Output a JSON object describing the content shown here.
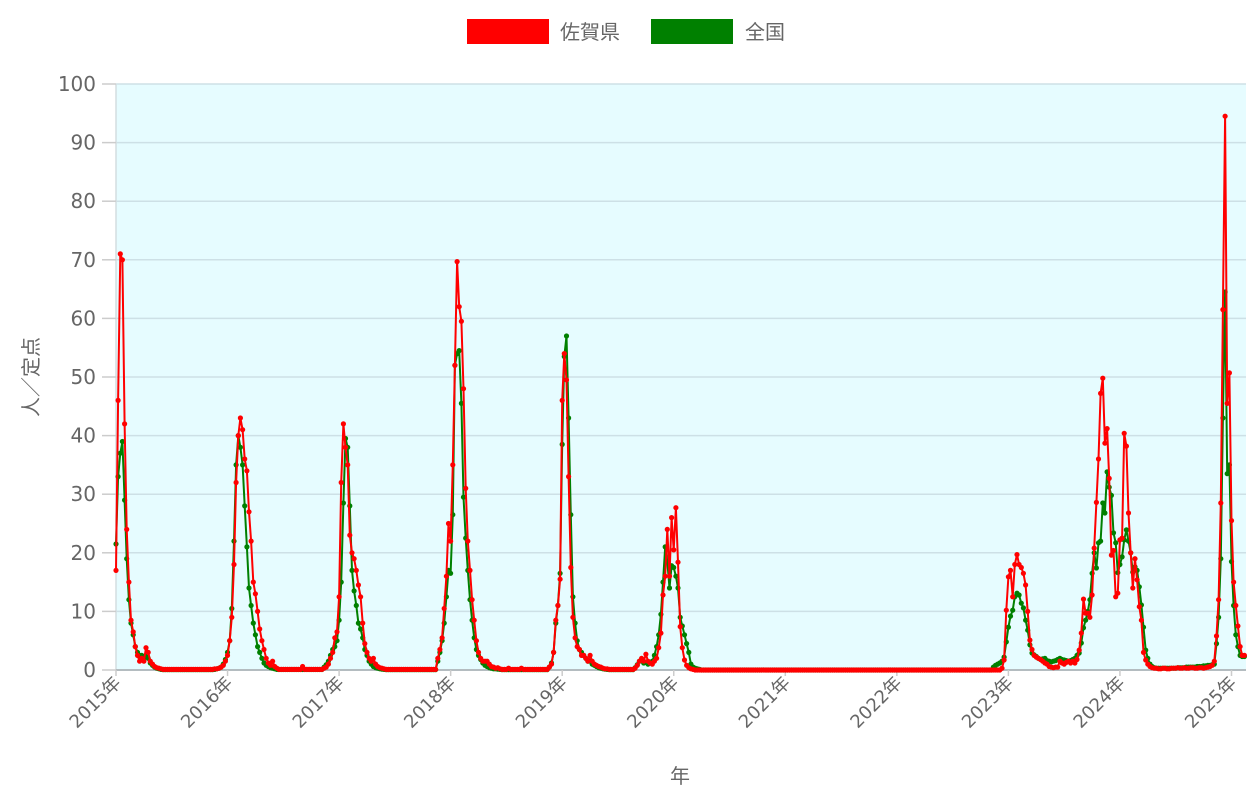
{
  "chart_data": {
    "type": "line",
    "title": "",
    "xlabel": "年",
    "ylabel": "人／定点",
    "xlim": [
      2015,
      2025.13
    ],
    "ylim": [
      0,
      100
    ],
    "y_ticks": [
      0,
      10,
      20,
      30,
      40,
      50,
      60,
      70,
      80,
      90,
      100
    ],
    "x_ticks": [
      2015,
      2016,
      2017,
      2018,
      2019,
      2020,
      2021,
      2022,
      2023,
      2024,
      2025
    ],
    "x_tick_labels": [
      "2015年",
      "2016年",
      "2017年",
      "2018年",
      "2019年",
      "2020年",
      "2021年",
      "2022年",
      "2023年",
      "2024年",
      "2025年"
    ],
    "x_resolution": "weekly",
    "grid": true,
    "plot_background": "#e6fcff",
    "legend_placement": "top",
    "legend": [
      {
        "label": "佐賀県",
        "color": "#ff0000"
      },
      {
        "label": "全国",
        "color": "#008000"
      }
    ],
    "series": [
      {
        "name": "佐賀県",
        "color": "#ff0000",
        "weekly_values_by_year": {
          "2015": [
            17,
            46,
            71,
            70,
            42,
            24,
            15,
            8.5,
            6.5,
            4,
            2.5,
            1.5,
            2,
            1.5,
            3.8,
            3,
            1.5,
            1,
            0.6,
            0.4,
            0.3,
            0.2,
            0.1,
            0.1,
            0.1,
            0.1,
            0.1,
            0.1,
            0.1,
            0.1,
            0.1,
            0.1,
            0.1,
            0.1,
            0.1,
            0.1,
            0.1,
            0.1,
            0.1,
            0.1,
            0.1,
            0.1,
            0.1,
            0.1,
            0.1,
            0.1,
            0.2,
            0.2,
            0.3,
            0.5,
            0.8,
            1.5
          ],
          "2016": [
            2.5,
            5,
            9,
            18,
            32,
            40,
            43,
            41,
            36,
            34,
            27,
            22,
            15,
            13,
            10,
            7,
            5,
            3.5,
            2,
            1.2,
            0.8,
            1.5,
            0.6,
            0.3,
            0.1,
            0.1,
            0.1,
            0.1,
            0.1,
            0.1,
            0.1,
            0.1,
            0.1,
            0.1,
            0.1,
            0.6,
            0.1,
            0.1,
            0.1,
            0.1,
            0.1,
            0.1,
            0.1,
            0.1,
            0.1,
            0.3,
            0.5,
            1,
            2,
            3,
            5.5,
            6.5
          ],
          "2017": [
            12.5,
            32,
            42,
            38,
            35,
            23,
            20,
            19,
            17,
            14.5,
            12.5,
            8,
            4.5,
            3,
            2,
            1.5,
            2,
            1,
            0.6,
            0.4,
            0.3,
            0.2,
            0.1,
            0.1,
            0.1,
            0.1,
            0.1,
            0.1,
            0.1,
            0.1,
            0.1,
            0.1,
            0.1,
            0.1,
            0.1,
            0.1,
            0.1,
            0.1,
            0.1,
            0.1,
            0.1,
            0.1,
            0.1,
            0.1,
            0.1,
            0.1,
            2,
            3.5,
            5.5,
            10.5,
            16,
            25
          ],
          "2018": [
            22,
            35,
            52,
            69.7,
            62,
            59.5,
            48,
            31,
            22,
            17,
            12,
            8.5,
            5,
            3,
            2,
            1.5,
            1.5,
            1.5,
            1,
            0.6,
            0.5,
            0.3,
            0.4,
            0.2,
            0.1,
            0.1,
            0.1,
            0.3,
            0.1,
            0.1,
            0.1,
            0.1,
            0.1,
            0.3,
            0.1,
            0.1,
            0.1,
            0.1,
            0.1,
            0.1,
            0.1,
            0.1,
            0.1,
            0.1,
            0.1,
            0.1,
            0.5,
            1,
            3,
            8.5,
            11,
            15.5
          ],
          "2019": [
            46,
            54,
            49.5,
            33,
            17.5,
            9,
            5.5,
            4,
            3.5,
            2.5,
            2.5,
            2,
            1.5,
            2.5,
            1.5,
            1,
            0.8,
            0.6,
            0.5,
            0.3,
            0.2,
            0.2,
            0.1,
            0.1,
            0.1,
            0.1,
            0.1,
            0.1,
            0.1,
            0.1,
            0.1,
            0.1,
            0.1,
            0.1,
            0.3,
            0.8,
            1.5,
            2,
            1.5,
            2.7,
            1.5,
            1.2,
            1,
            1.5,
            2,
            3.8,
            6.3,
            12.8,
            16,
            24,
            16,
            26
          ],
          "2020": [
            20.5,
            27.7,
            18.4,
            7.4,
            3.8,
            1.7,
            0.8,
            0.4,
            0.2,
            0.1,
            0,
            0,
            0,
            0,
            0,
            0,
            0,
            0,
            0,
            0,
            0,
            0,
            0,
            0,
            0,
            0,
            0,
            0,
            0,
            0,
            0,
            0,
            0,
            0,
            0,
            0,
            0,
            0,
            0,
            0,
            0,
            0,
            0,
            0,
            0,
            0,
            0,
            0,
            0,
            0,
            0,
            0
          ],
          "2021": [
            0,
            0,
            0,
            0,
            0,
            0,
            0,
            0,
            0,
            0,
            0,
            0,
            0,
            0,
            0,
            0,
            0,
            0,
            0,
            0,
            0,
            0,
            0,
            0,
            0,
            0,
            0,
            0,
            0,
            0,
            0,
            0,
            0,
            0,
            0,
            0,
            0,
            0,
            0,
            0,
            0,
            0,
            0,
            0,
            0,
            0,
            0,
            0,
            0,
            0,
            0,
            0
          ],
          "2022": [
            0,
            0,
            0,
            0,
            0,
            0,
            0,
            0,
            0,
            0,
            0,
            0,
            0,
            0,
            0,
            0,
            0,
            0,
            0,
            0,
            0,
            0,
            0,
            0,
            0,
            0,
            0,
            0,
            0,
            0,
            0,
            0,
            0,
            0,
            0,
            0,
            0,
            0,
            0,
            0,
            0,
            0,
            0,
            0,
            0,
            0,
            0,
            0,
            0,
            0.3,
            1.7,
            10.2
          ],
          "2023": [
            15.9,
            17,
            12.5,
            18,
            19.7,
            18,
            17.5,
            16.5,
            14.5,
            10,
            5.1,
            3.5,
            2.5,
            2.2,
            2,
            1.8,
            1.5,
            1.2,
            1,
            0.6,
            0.5,
            0.4,
            0.5,
            0.5,
            1.5,
            1.2,
            1,
            1.3,
            1.5,
            1.2,
            1.5,
            1.2,
            1.8,
            3.4,
            6.3,
            12.1,
            9.7,
            9.7,
            9,
            12.8,
            20.8,
            28.6,
            36,
            47.2,
            49.8,
            38.7,
            41.2,
            32.7,
            19.6,
            20.4,
            12.5,
            13.1
          ],
          "2024": [
            22.2,
            22.5,
            40.4,
            38.2,
            26.8,
            20,
            14,
            19,
            15.4,
            10.8,
            8.5,
            3,
            1.7,
            1,
            0.6,
            0.4,
            0.3,
            0.3,
            0.2,
            0.2,
            0.3,
            0.3,
            0.2,
            0.2,
            0.3,
            0.3,
            0.3,
            0.4,
            0.3,
            0.3,
            0.4,
            0.3,
            0.3,
            0.4,
            0.4,
            0.3,
            0.3,
            0.4,
            0.4,
            0.3,
            0.4,
            0.5,
            0.6,
            0.8,
            1.5,
            5.8,
            12,
            28.5,
            61.5,
            94.5,
            45.5,
            50.7
          ],
          "2025": [
            25.5,
            15,
            11,
            7.5,
            4,
            2.5,
            2.5
          ]
        }
      },
      {
        "name": "全国",
        "color": "#008000",
        "weekly_values_by_year": {
          "2015": [
            21.5,
            33,
            37,
            39,
            29,
            19,
            12,
            8,
            6,
            4,
            3,
            2.5,
            2.5,
            2,
            2.5,
            2,
            1.2,
            0.8,
            0.5,
            0.3,
            0.2,
            0.1,
            0.05,
            0.05,
            0.05,
            0.05,
            0.05,
            0.05,
            0.05,
            0.05,
            0.05,
            0.05,
            0.05,
            0.05,
            0.05,
            0.05,
            0.05,
            0.05,
            0.05,
            0.05,
            0.05,
            0.05,
            0.05,
            0.05,
            0.05,
            0.05,
            0.1,
            0.2,
            0.3,
            0.5,
            1,
            1.8
          ],
          "2016": [
            3,
            5,
            10.5,
            22,
            35,
            40,
            38,
            35,
            28,
            21,
            14,
            11,
            8,
            6,
            4,
            3,
            2,
            1.2,
            0.8,
            0.6,
            0.4,
            0.3,
            0.2,
            0.1,
            0.08,
            0.08,
            0.08,
            0.08,
            0.08,
            0.08,
            0.08,
            0.08,
            0.08,
            0.08,
            0.08,
            0.08,
            0.08,
            0.08,
            0.08,
            0.08,
            0.08,
            0.08,
            0.08,
            0.08,
            0.08,
            0.5,
            0.9,
            1.5,
            2.5,
            3.5,
            4,
            5
          ],
          "2017": [
            8.5,
            15,
            28.5,
            39.5,
            38,
            28,
            17,
            13.5,
            11,
            8,
            7,
            5.5,
            3.5,
            2.5,
            1.5,
            1,
            0.6,
            0.4,
            0.3,
            0.2,
            0.15,
            0.1,
            0.05,
            0.05,
            0.05,
            0.05,
            0.05,
            0.05,
            0.05,
            0.05,
            0.05,
            0.05,
            0.05,
            0.05,
            0.05,
            0.05,
            0.05,
            0.05,
            0.05,
            0.05,
            0.05,
            0.05,
            0.05,
            0.05,
            0.05,
            0.05,
            1.5,
            3,
            5,
            8,
            12.5,
            17
          ],
          "2018": [
            16.5,
            26.5,
            52,
            54,
            54.5,
            45.5,
            29.5,
            22.5,
            17,
            12,
            8.5,
            5.5,
            3.5,
            2.5,
            1.8,
            1.2,
            0.8,
            0.6,
            0.4,
            0.3,
            0.2,
            0.2,
            0.15,
            0.1,
            0.05,
            0.05,
            0.05,
            0.05,
            0.05,
            0.05,
            0.05,
            0.05,
            0.05,
            0.05,
            0.05,
            0.05,
            0.05,
            0.05,
            0.05,
            0.05,
            0.05,
            0.05,
            0.05,
            0.05,
            0.05,
            0.05,
            0.5,
            1.2,
            3,
            8,
            11,
            16.5
          ],
          "2019": [
            38.5,
            53.5,
            57,
            43,
            26.5,
            12.5,
            8,
            5,
            3.5,
            3,
            2.5,
            2,
            1.5,
            1.5,
            1,
            0.8,
            0.6,
            0.4,
            0.3,
            0.2,
            0.15,
            0.1,
            0.05,
            0.05,
            0.05,
            0.05,
            0.05,
            0.05,
            0.05,
            0.05,
            0.05,
            0.05,
            0.05,
            0.05,
            0.4,
            0.9,
            1.5,
            1.6,
            1.2,
            1.3,
            1,
            1.2,
            1.5,
            2.5,
            4,
            6,
            9.5,
            15,
            21,
            18.5,
            14,
            17.8
          ],
          "2020": [
            17.5,
            16,
            14,
            9,
            7.5,
            6,
            4.5,
            3,
            1,
            0.5,
            0.3,
            0.2,
            0.1,
            0,
            0,
            0,
            0,
            0,
            0,
            0,
            0,
            0,
            0,
            0,
            0,
            0,
            0,
            0,
            0,
            0,
            0,
            0,
            0,
            0,
            0,
            0,
            0,
            0,
            0,
            0,
            0,
            0,
            0,
            0,
            0,
            0,
            0,
            0,
            0,
            0,
            0,
            0
          ],
          "2021": [
            0,
            0,
            0,
            0,
            0,
            0,
            0,
            0,
            0,
            0,
            0,
            0,
            0,
            0,
            0,
            0,
            0,
            0,
            0,
            0,
            0,
            0,
            0,
            0,
            0,
            0,
            0,
            0,
            0,
            0,
            0,
            0,
            0,
            0,
            0,
            0,
            0,
            0,
            0,
            0,
            0,
            0,
            0,
            0,
            0,
            0,
            0,
            0,
            0,
            0,
            0,
            0
          ],
          "2022": [
            0,
            0,
            0,
            0,
            0,
            0,
            0,
            0,
            0,
            0,
            0,
            0,
            0,
            0,
            0,
            0,
            0,
            0,
            0,
            0,
            0,
            0,
            0,
            0,
            0,
            0,
            0,
            0,
            0,
            0,
            0,
            0,
            0,
            0,
            0,
            0,
            0,
            0,
            0,
            0,
            0,
            0,
            0,
            0,
            0,
            0.5,
            0.8,
            1,
            1.2,
            1.5,
            2.2,
            4.8
          ],
          "2023": [
            7.3,
            9.2,
            10.2,
            12.5,
            13.1,
            12.8,
            11.4,
            10.6,
            8.5,
            6.8,
            4.3,
            2.9,
            2.6,
            2.3,
            2,
            1.8,
            1.9,
            2,
            1.6,
            1.5,
            1.4,
            1.5,
            1.6,
            1.8,
            2,
            1.8,
            1.7,
            1.6,
            1.5,
            1.6,
            1.8,
            2,
            2.5,
            2.9,
            4.6,
            7.2,
            8.5,
            10,
            12,
            16.5,
            20,
            17.4,
            21.7,
            22,
            28.5,
            26.8,
            33.8,
            31.2,
            29.8,
            23.4,
            21.7,
            16.6
          ],
          "2024": [
            18,
            19.3,
            22.2,
            23.9,
            22,
            20,
            16.7,
            17.6,
            17,
            14.2,
            11.1,
            7.3,
            3.4,
            2,
            1,
            0.6,
            0.4,
            0.3,
            0.3,
            0.3,
            0.3,
            0.3,
            0.3,
            0.3,
            0.3,
            0.3,
            0.3,
            0.4,
            0.4,
            0.4,
            0.4,
            0.5,
            0.5,
            0.5,
            0.5,
            0.5,
            0.6,
            0.6,
            0.6,
            0.7,
            0.7,
            0.8,
            0.8,
            0.9,
            1,
            4.5,
            9,
            19,
            43,
            64.5,
            33.5,
            35
          ],
          "2025": [
            18.5,
            11,
            6,
            4,
            2.5,
            2.3,
            2.3
          ]
        }
      }
    ]
  }
}
